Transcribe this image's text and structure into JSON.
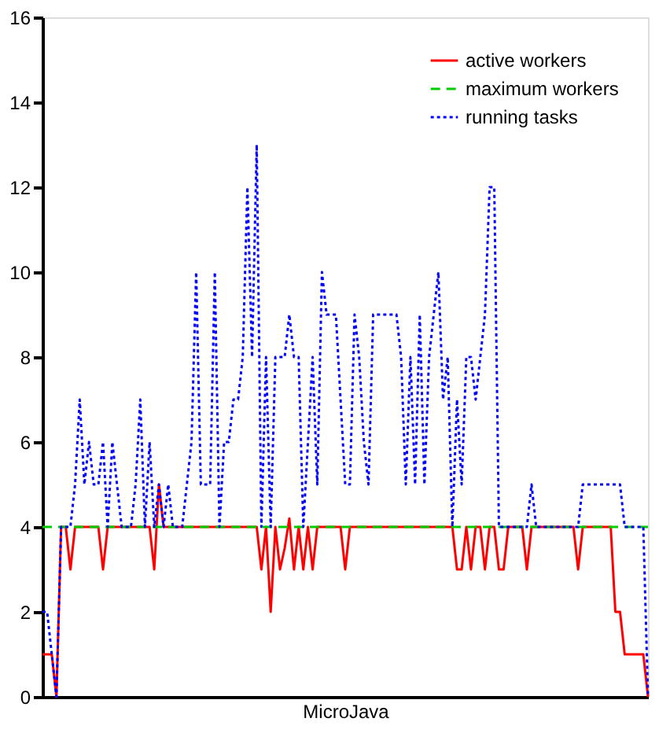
{
  "chart_data": {
    "type": "line",
    "xlabel": "MicroJava",
    "categories": [
      null,
      null,
      null,
      null,
      null,
      null,
      null,
      null,
      null,
      null,
      null,
      null,
      null,
      null,
      null,
      null,
      null,
      null,
      null,
      null,
      null,
      null,
      null,
      null,
      null,
      null,
      null,
      null,
      null,
      null,
      null,
      null,
      null,
      null,
      null,
      null,
      null,
      null,
      null,
      null,
      null,
      null,
      null,
      null,
      null,
      null,
      null,
      null,
      null,
      null,
      null,
      null,
      null,
      null,
      null,
      null,
      null,
      null,
      null,
      null,
      null,
      null,
      null,
      null,
      null,
      null,
      null,
      null,
      null,
      null,
      null,
      null,
      null,
      null,
      null,
      null,
      null,
      null,
      null,
      null,
      null,
      null,
      null,
      null,
      null,
      null,
      null,
      null,
      null,
      null,
      null,
      null,
      null,
      null,
      null,
      null,
      null,
      null,
      null,
      null,
      null,
      null,
      null,
      null,
      null,
      null,
      null,
      null,
      null,
      null,
      null,
      null,
      null,
      null,
      null,
      null,
      null,
      null,
      null,
      null,
      null,
      null,
      null,
      null,
      null,
      null,
      null,
      null,
      null,
      null,
      null
    ],
    "series": [
      {
        "name": "active workers",
        "color": "#ff0000",
        "line_style": "solid",
        "values": [
          1,
          1,
          1,
          0,
          4,
          4,
          3,
          4,
          4,
          4,
          4,
          4,
          4,
          3,
          4,
          4,
          4,
          4,
          4,
          4,
          4,
          4,
          4,
          4,
          3,
          5,
          4,
          4,
          4,
          4,
          4,
          4,
          4,
          4,
          4,
          4,
          4,
          4,
          4,
          4,
          4,
          4,
          4,
          4,
          4,
          4,
          4,
          3,
          4,
          2,
          4,
          3,
          3.5,
          4.2,
          3,
          4,
          3,
          4,
          3,
          4,
          4,
          4,
          4,
          4,
          4,
          3,
          4,
          4,
          4,
          4,
          4,
          4,
          4,
          4,
          4,
          4,
          4,
          4,
          4,
          4,
          4,
          4,
          4,
          4,
          4,
          4,
          4,
          4,
          4,
          3,
          3,
          4,
          3,
          4,
          4,
          3,
          4,
          4,
          3,
          3,
          4,
          4,
          4,
          4,
          3,
          4,
          4,
          4,
          4,
          4,
          4,
          4,
          4,
          4,
          4,
          3,
          4,
          4,
          4,
          4,
          4,
          4,
          4,
          2,
          2,
          1,
          1,
          1,
          1,
          1,
          0
        ]
      },
      {
        "name": "maximum workers",
        "color": "#00cc00",
        "line_style": "dashed",
        "values": [
          4,
          4,
          4,
          4,
          4,
          4,
          4,
          4,
          4,
          4,
          4,
          4,
          4,
          4,
          4,
          4,
          4,
          4,
          4,
          4,
          4,
          4,
          4,
          4,
          4,
          4,
          4,
          4,
          4,
          4,
          4,
          4,
          4,
          4,
          4,
          4,
          4,
          4,
          4,
          4,
          4,
          4,
          4,
          4,
          4,
          4,
          4,
          4,
          4,
          4,
          4,
          4,
          4,
          4,
          4,
          4,
          4,
          4,
          4,
          4,
          4,
          4,
          4,
          4,
          4,
          4,
          4,
          4,
          4,
          4,
          4,
          4,
          4,
          4,
          4,
          4,
          4,
          4,
          4,
          4,
          4,
          4,
          4,
          4,
          4,
          4,
          4,
          4,
          4,
          4,
          4,
          4,
          4,
          4,
          4,
          4,
          4,
          4,
          4,
          4,
          4,
          4,
          4,
          4,
          4,
          4,
          4,
          4,
          4,
          4,
          4,
          4,
          4,
          4,
          4,
          4,
          4,
          4,
          4,
          4,
          4,
          4,
          4,
          4,
          4,
          4,
          4,
          4,
          4,
          4,
          4
        ]
      },
      {
        "name": "running tasks",
        "color": "#0000ff",
        "line_style": "dotted",
        "values": [
          2,
          2,
          1,
          0,
          4,
          4,
          4,
          5,
          7,
          5,
          6,
          5,
          5,
          6,
          4,
          6,
          5,
          4,
          4,
          4,
          5,
          7,
          4,
          6,
          4,
          5,
          4,
          5,
          4,
          4,
          4,
          5,
          6,
          10,
          5,
          5,
          5,
          10,
          4,
          6,
          6,
          7,
          7,
          8,
          12,
          8,
          13,
          4,
          8,
          4,
          8,
          8,
          8,
          9,
          8,
          8,
          4,
          6,
          8,
          5,
          10,
          9,
          9,
          9,
          7,
          5,
          5,
          9,
          8,
          6,
          5,
          9,
          9,
          9,
          9,
          9,
          9,
          8,
          5,
          8,
          5,
          9,
          5,
          8,
          9,
          10,
          7,
          8,
          4,
          7,
          5,
          8,
          8,
          7,
          8,
          9,
          12,
          12,
          4,
          4,
          4,
          4,
          4,
          4,
          4,
          5,
          4,
          4,
          4,
          4,
          4,
          4,
          4,
          4,
          4,
          4,
          5,
          5,
          5,
          5,
          5,
          5,
          5,
          5,
          5,
          4,
          4,
          4,
          4,
          4,
          0
        ]
      }
    ],
    "ylim": [
      0,
      16
    ],
    "yticks": [
      0,
      2,
      4,
      6,
      8,
      10,
      12,
      14,
      16
    ],
    "tick_labels": "y",
    "grid": false,
    "legend": "top right",
    "marker": "none"
  }
}
